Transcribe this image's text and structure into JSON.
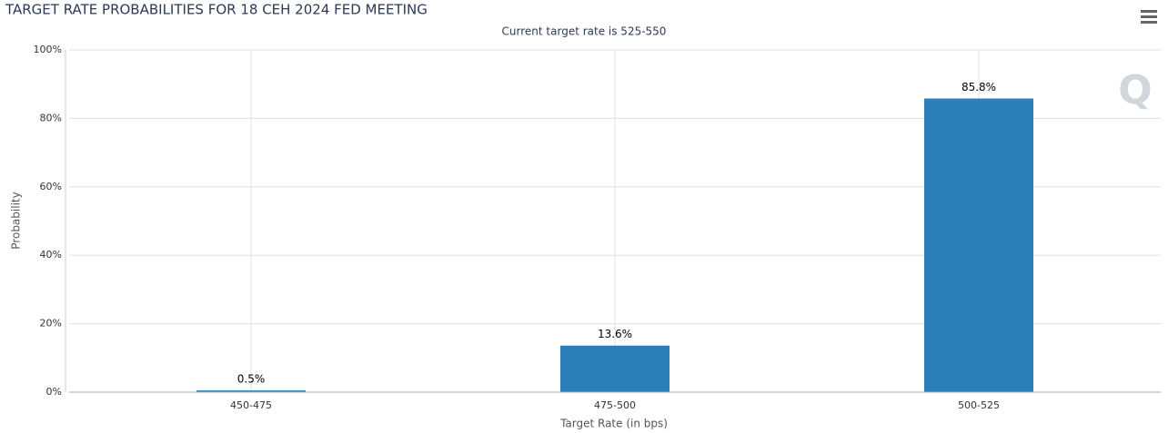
{
  "chart_data": {
    "type": "bar",
    "title": "TARGET RATE PROBABILITIES FOR 18 CEH 2024 FED MEETING",
    "subtitle": "Current target rate is 525-550",
    "x_label": "Target Rate (in bps)",
    "y_label": "Probability",
    "categories": [
      "450-475",
      "475-500",
      "500-525"
    ],
    "values": [
      0.5,
      13.6,
      85.8
    ],
    "value_labels": [
      "0.5%",
      "13.6%",
      "85.8%"
    ],
    "color": "#2a7fb8",
    "ylim": [
      0,
      100
    ],
    "yticks": [
      {
        "value": 0,
        "label": "0%"
      },
      {
        "value": 20,
        "label": "20%"
      },
      {
        "value": 40,
        "label": "40%"
      },
      {
        "value": 60,
        "label": "60%"
      },
      {
        "value": 80,
        "label": "80%"
      },
      {
        "value": 100,
        "label": "100%"
      }
    ],
    "grid": true
  }
}
